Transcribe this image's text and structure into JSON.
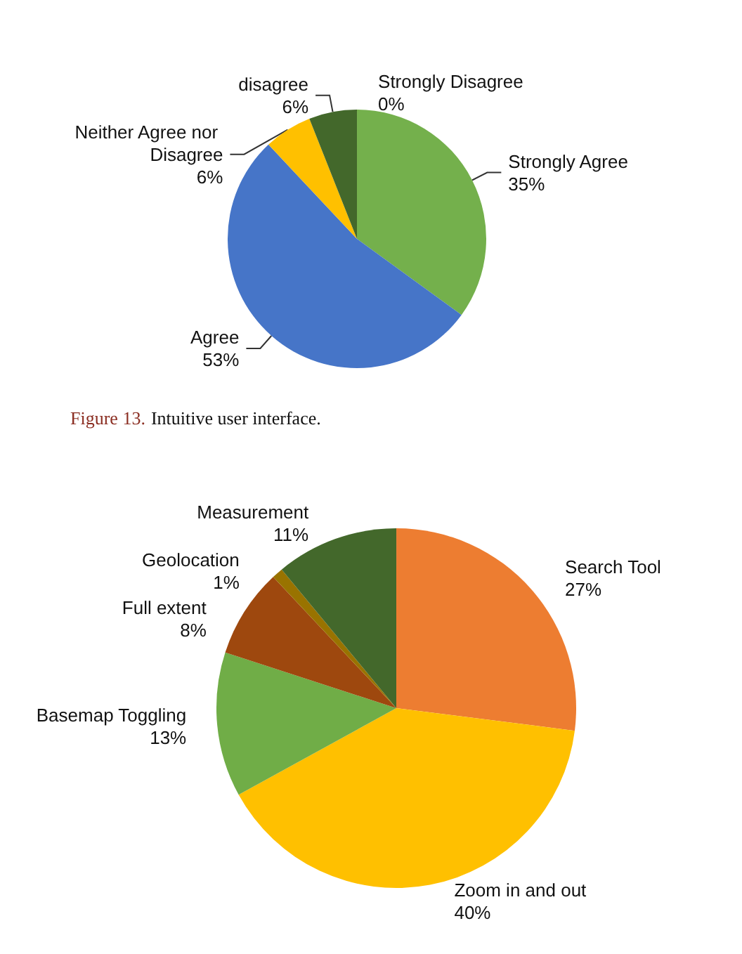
{
  "chart_data": [
    {
      "type": "pie",
      "categories": [
        "Strongly Agree",
        "Agree",
        "Neither Agree nor Disagree",
        "disagree",
        "Strongly Disagree"
      ],
      "values": [
        35,
        53,
        6,
        6,
        0
      ],
      "value_labels": [
        "35%",
        "53%",
        "6%",
        "6%",
        "0%"
      ],
      "colors": [
        "#74b04c",
        "#4675c8",
        "#ffc000",
        "#43682b",
        null
      ],
      "annotations": [
        "Figure 13.",
        "Intuitive user interface."
      ]
    },
    {
      "type": "pie",
      "categories": [
        "Search Tool",
        "Zoom in and out",
        "Basemap Toggling",
        "Full extent",
        "Geolocation",
        "Measurement"
      ],
      "values": [
        27,
        40,
        13,
        8,
        1,
        11
      ],
      "value_labels": [
        "27%",
        "40%",
        "13%",
        "8%",
        "1%",
        "11%"
      ],
      "colors": [
        "#ed7d31",
        "#ffc000",
        "#70ad47",
        "#9e480e",
        "#997300",
        "#43682b"
      ]
    }
  ]
}
